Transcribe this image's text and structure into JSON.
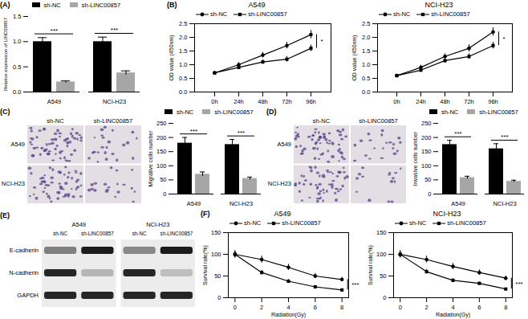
{
  "chart_data": [
    {
      "panel": "(A)",
      "type": "bar",
      "categories": [
        "A549",
        "NCI-H23"
      ],
      "ylabel": "Relative expression of LINC00857",
      "ylim": [
        0,
        1.5
      ],
      "yticks": [
        {
          "value": 0,
          "label": "0.0"
        },
        0.5,
        {
          "value": 1,
          "label": "1.0"
        },
        1.5
      ],
      "series": [
        {
          "name": "sh-NC",
          "color": "#000000",
          "values": [
            1.0,
            1.0
          ],
          "errors": [
            0.08,
            0.09
          ]
        },
        {
          "name": "sh-LINC00857",
          "color": "#a6a6a6",
          "values": [
            0.2,
            0.38
          ],
          "errors": [
            0.02,
            0.04
          ]
        }
      ],
      "significance": [
        "***",
        "***"
      ]
    },
    {
      "panel": "(B)",
      "title": "A549",
      "type": "line",
      "categories": [
        "0h",
        "24h",
        "48h",
        "72h",
        "96h"
      ],
      "ylabel": "OD value (450nm)",
      "ylim": [
        0,
        2.5
      ],
      "yticks": [
        {
          "value": 0,
          "label": "0.0"
        },
        0.5,
        {
          "value": 1,
          "label": "1.0"
        },
        1.5,
        {
          "value": 2,
          "label": "2.0"
        },
        2.5
      ],
      "series": [
        {
          "name": "sh-NC",
          "color": "#000000",
          "marker": "circle",
          "values": [
            0.7,
            1.0,
            1.35,
            1.7,
            2.1
          ],
          "errors": [
            0.05,
            0.08,
            0.1,
            0.12,
            0.15
          ]
        },
        {
          "name": "sh-LINC00857",
          "color": "#000000",
          "marker": "square",
          "values": [
            0.7,
            0.9,
            1.1,
            1.2,
            1.6
          ],
          "errors": [
            0.05,
            0.07,
            0.08,
            0.1,
            0.12
          ]
        }
      ],
      "significance": "*"
    },
    {
      "title": "NCI-H23",
      "type": "line",
      "categories": [
        "0h",
        "24h",
        "48h",
        "72h",
        "96h"
      ],
      "ylabel": "OD value (450nm)",
      "ylim": [
        0,
        2.5
      ],
      "yticks": [
        {
          "value": 0,
          "label": "0.0"
        },
        0.5,
        {
          "value": 1,
          "label": "1.0"
        },
        1.5,
        {
          "value": 2,
          "label": "2.0"
        },
        2.5
      ],
      "series": [
        {
          "name": "sh-NC",
          "color": "#000000",
          "marker": "circle",
          "values": [
            0.6,
            0.9,
            1.3,
            1.6,
            2.2
          ],
          "errors": [
            0.05,
            0.08,
            0.1,
            0.13,
            0.15
          ]
        },
        {
          "name": "sh-LINC00857",
          "color": "#000000",
          "marker": "square",
          "values": [
            0.6,
            0.8,
            1.15,
            1.3,
            1.7
          ],
          "errors": [
            0.05,
            0.07,
            0.09,
            0.1,
            0.12
          ]
        }
      ],
      "significance": "*"
    },
    {
      "type": "bar",
      "categories": [
        "A549",
        "NCI-H23"
      ],
      "ylabel": "Migrative cells number",
      "ylim": [
        0,
        250
      ],
      "yticks": [
        0,
        50,
        100,
        150,
        200,
        250
      ],
      "series": [
        {
          "name": "sh-NC",
          "color": "#000000",
          "values": [
            180,
            175
          ],
          "errors": [
            20,
            18
          ]
        },
        {
          "name": "sh-LINC00857",
          "color": "#a6a6a6",
          "values": [
            70,
            55
          ],
          "errors": [
            8,
            5
          ]
        }
      ],
      "significance": [
        "***",
        "***"
      ]
    },
    {
      "type": "bar",
      "categories": [
        "A549",
        "NCI-H23"
      ],
      "ylabel": "Invasive cells number",
      "ylim": [
        0,
        250
      ],
      "yticks": [
        0,
        50,
        100,
        150,
        200,
        250
      ],
      "series": [
        {
          "name": "sh-NC",
          "color": "#000000",
          "values": [
            175,
            160
          ],
          "errors": [
            15,
            18
          ]
        },
        {
          "name": "sh-LINC00857",
          "color": "#a6a6a6",
          "values": [
            58,
            45
          ],
          "errors": [
            5,
            4
          ]
        }
      ],
      "significance": [
        "***",
        "***"
      ]
    },
    {
      "panel": "(F)",
      "title": "A549",
      "type": "line",
      "x": [
        0,
        2,
        4,
        6,
        8
      ],
      "xlim": [
        -0.5,
        8.5
      ],
      "xticks": [
        0,
        2,
        4,
        6,
        8
      ],
      "xlabel": "Radiation(Gy)",
      "ylabel": "Survival rate(%)",
      "ylim": [
        0,
        150
      ],
      "yticks": [
        0,
        50,
        100,
        150
      ],
      "series": [
        {
          "name": "sh-NC",
          "color": "#000000",
          "marker": "circle",
          "values": [
            100,
            88,
            70,
            50,
            42
          ],
          "errors": [
            8,
            8,
            7,
            6,
            5
          ]
        },
        {
          "name": "sh-LINC00857",
          "color": "#000000",
          "marker": "square",
          "values": [
            100,
            58,
            38,
            25,
            18
          ],
          "errors": [
            8,
            5,
            4,
            3,
            2
          ]
        }
      ],
      "significance": "***"
    },
    {
      "title": "NCI-H23",
      "type": "line",
      "x": [
        0,
        2,
        4,
        6,
        8
      ],
      "xlim": [
        -0.5,
        8.5
      ],
      "xticks": [
        0,
        2,
        4,
        6,
        8
      ],
      "xlabel": "Radiation(Gy)",
      "ylabel": "Survival rate(%)",
      "ylim": [
        0,
        150
      ],
      "yticks": [
        0,
        50,
        100,
        150
      ],
      "series": [
        {
          "name": "sh-NC",
          "color": "#000000",
          "marker": "circle",
          "values": [
            100,
            88,
            72,
            58,
            45
          ],
          "errors": [
            8,
            8,
            7,
            6,
            5
          ]
        },
        {
          "name": "sh-LINC00857",
          "color": "#000000",
          "marker": "square",
          "values": [
            100,
            60,
            40,
            33,
            20
          ],
          "errors": [
            8,
            5,
            4,
            3,
            2
          ]
        }
      ],
      "significance": "***"
    }
  ],
  "images": [
    {
      "panel": "(C)",
      "columns": [
        "sh-NC",
        "sh-LINC00857"
      ],
      "rows": [
        "A549",
        "NCI-H23"
      ]
    },
    {
      "panel": "(D)",
      "columns": [
        "sh-NC",
        "sh-LINC00857"
      ],
      "rows": [
        "A549",
        "NCI-H23"
      ]
    }
  ],
  "blot": {
    "panel": "(E)",
    "groups": [
      {
        "name": "A549",
        "lanes": [
          "sh-NC",
          "sh-LINC00857"
        ]
      },
      {
        "name": "NCI-H23",
        "lanes": [
          "sh-NC",
          "sh-LINC00857"
        ]
      }
    ],
    "proteins": [
      "E-cadherin",
      "N-cadherin",
      "GAPDH"
    ],
    "band_intensity": [
      [
        0.5,
        0.95,
        0.45,
        0.95
      ],
      [
        0.9,
        0.25,
        0.9,
        0.2
      ],
      [
        0.9,
        0.9,
        0.9,
        0.9
      ]
    ]
  }
}
